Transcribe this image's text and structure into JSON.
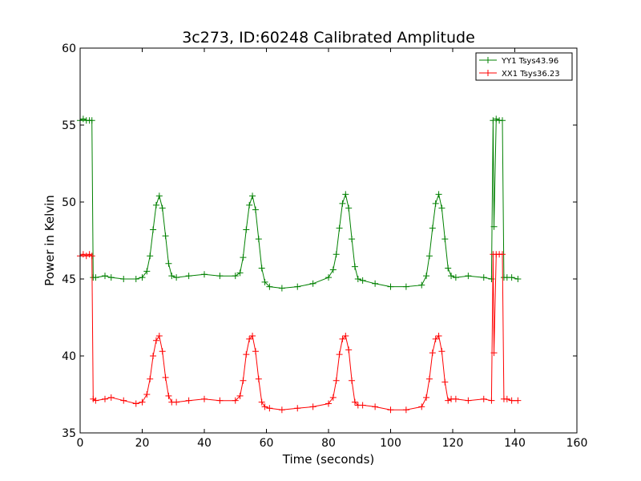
{
  "chart_data": {
    "type": "line",
    "title": "3c273, ID:60248 Calibrated Amplitude",
    "xlabel": "Time (seconds)",
    "ylabel": "Power in Kelvin",
    "xlim": [
      0,
      160
    ],
    "ylim": [
      35,
      60
    ],
    "xticks": [
      0,
      20,
      40,
      60,
      80,
      100,
      120,
      140,
      160
    ],
    "yticks": [
      35,
      40,
      45,
      50,
      55,
      60
    ],
    "grid": false,
    "legend_position": "top-right",
    "series": [
      {
        "name": "YY1 Tsys43.96",
        "color": "#008000",
        "marker": "+",
        "x": [
          0,
          1,
          2,
          3,
          3.8,
          4.2,
          5,
          8,
          10,
          14,
          18,
          20,
          21.5,
          22.5,
          23.5,
          24.5,
          25.5,
          26.5,
          27.5,
          28.5,
          29.5,
          31,
          35,
          40,
          45,
          50,
          51.5,
          52.5,
          53.5,
          54.5,
          55.5,
          56.5,
          57.5,
          58.5,
          59.5,
          61,
          65,
          70,
          75,
          80,
          81.5,
          82.5,
          83.5,
          84.5,
          85.5,
          86.5,
          87.5,
          88.5,
          89.5,
          91,
          95,
          100,
          105,
          110,
          111.5,
          112.5,
          113.5,
          114.5,
          115.5,
          116.5,
          117.5,
          118.5,
          119.5,
          121,
          125,
          130,
          132.5,
          133,
          133.3,
          134,
          135,
          136,
          136.5,
          137.5,
          139,
          141
        ],
        "values": [
          55.3,
          55.4,
          55.3,
          55.3,
          55.3,
          45.1,
          45.1,
          45.2,
          45.1,
          45.0,
          45.0,
          45.1,
          45.5,
          46.5,
          48.2,
          49.8,
          50.4,
          49.6,
          47.8,
          46.0,
          45.2,
          45.1,
          45.2,
          45.3,
          45.2,
          45.2,
          45.4,
          46.4,
          48.2,
          49.8,
          50.4,
          49.5,
          47.6,
          45.7,
          44.8,
          44.5,
          44.4,
          44.5,
          44.7,
          45.1,
          45.6,
          46.6,
          48.3,
          49.9,
          50.5,
          49.6,
          47.6,
          45.8,
          45.0,
          44.9,
          44.7,
          44.5,
          44.5,
          44.6,
          45.2,
          46.5,
          48.3,
          49.9,
          50.5,
          49.6,
          47.6,
          45.7,
          45.2,
          45.1,
          45.2,
          45.1,
          45.0,
          55.3,
          48.4,
          55.4,
          55.3,
          55.3,
          45.1,
          45.1,
          45.1,
          45.0
        ]
      },
      {
        "name": "XX1 Tsys36.23",
        "color": "#ff0000",
        "marker": "+",
        "x": [
          0,
          1,
          2,
          3,
          3.8,
          4.2,
          5,
          8,
          10,
          14,
          18,
          20,
          21.5,
          22.5,
          23.5,
          24.5,
          25.5,
          26.5,
          27.5,
          28.5,
          29.5,
          31,
          35,
          40,
          45,
          50,
          51.5,
          52.5,
          53.5,
          54.5,
          55.5,
          56.5,
          57.5,
          58.5,
          59.5,
          61,
          65,
          70,
          75,
          80,
          81.5,
          82.5,
          83.5,
          84.5,
          85.5,
          86.5,
          87.5,
          88.5,
          89.5,
          91,
          95,
          100,
          105,
          110,
          111.5,
          112.5,
          113.5,
          114.5,
          115.5,
          116.5,
          117.5,
          118.5,
          119.5,
          121,
          125,
          130,
          132.5,
          133,
          133.3,
          134,
          135,
          136,
          136.5,
          137.5,
          139,
          141
        ],
        "values": [
          46.5,
          46.6,
          46.5,
          46.6,
          46.5,
          37.2,
          37.1,
          37.2,
          37.3,
          37.1,
          36.9,
          37.0,
          37.5,
          38.5,
          40.0,
          41.0,
          41.3,
          40.3,
          38.6,
          37.4,
          37.0,
          37.0,
          37.1,
          37.2,
          37.1,
          37.1,
          37.4,
          38.4,
          40.1,
          41.1,
          41.3,
          40.3,
          38.5,
          37.0,
          36.7,
          36.6,
          36.5,
          36.6,
          36.7,
          36.9,
          37.3,
          38.4,
          40.1,
          41.1,
          41.3,
          40.4,
          38.4,
          37.0,
          36.8,
          36.8,
          36.7,
          36.5,
          36.5,
          36.7,
          37.3,
          38.5,
          40.2,
          41.1,
          41.3,
          40.3,
          38.3,
          37.1,
          37.2,
          37.2,
          37.1,
          37.2,
          37.1,
          46.6,
          40.2,
          46.6,
          46.6,
          46.6,
          37.2,
          37.2,
          37.1,
          37.1
        ]
      }
    ]
  }
}
